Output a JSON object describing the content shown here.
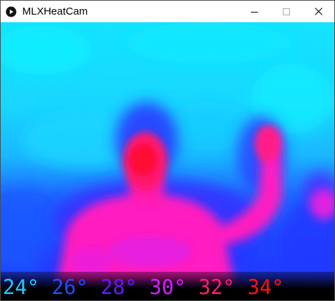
{
  "window": {
    "title": "MLXHeatCam",
    "icon": "play-circle-icon",
    "controls": [
      "minimize-icon",
      "maximize-icon",
      "close-icon"
    ]
  },
  "scale": {
    "labels": [
      "24°",
      "26°",
      "28°",
      "30°",
      "32°",
      "34°"
    ],
    "colors": [
      "#19c8ff",
      "#1f4dff",
      "#6419ff",
      "#d61cff",
      "#ff1d6e",
      "#ff1010"
    ]
  }
}
